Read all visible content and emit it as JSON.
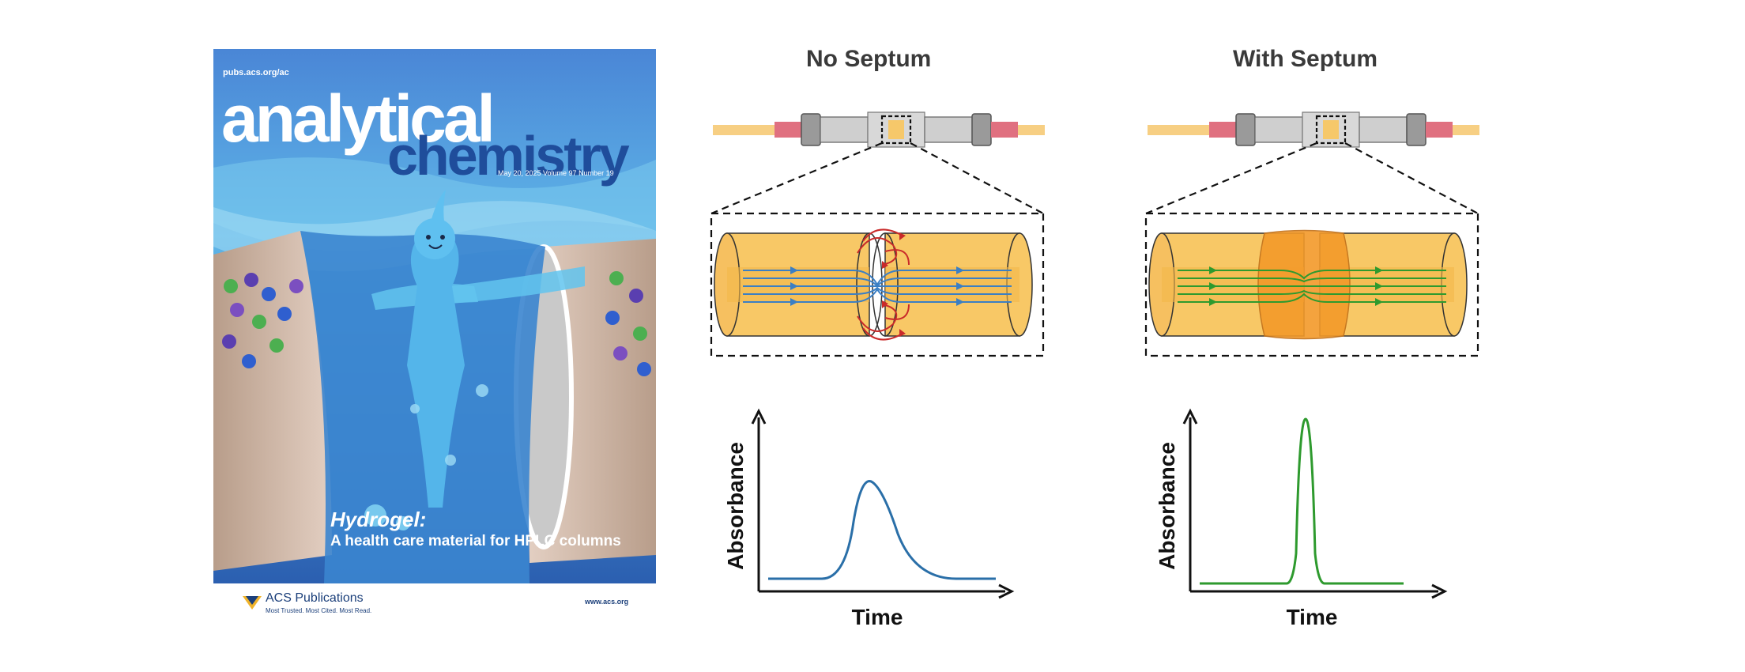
{
  "cover": {
    "url": "pubs.acs.org/ac",
    "title_line1": "analytical",
    "title_line2": "chemistry",
    "issue": "May 20, 2025  Volume 97  Number 19",
    "highlight_title": "Hydrogel:",
    "highlight_subtitle": "A health care material for HPLC columns",
    "publisher": "ACS Publications",
    "publisher_tagline": "Most Trusted. Most Cited. Most Read.",
    "website": "www.acs.org"
  },
  "panels": [
    {
      "title": "No Septum",
      "xlabel": "Time",
      "ylabel": "Absorbance",
      "trace_color": "#2a6fa8",
      "flow_color": "#3b7fc4"
    },
    {
      "title": "With Septum",
      "xlabel": "Time",
      "ylabel": "Absorbance",
      "trace_color": "#2e9a2e",
      "flow_color": "#2e9a2e"
    }
  ],
  "colors": {
    "capillary": "#f7cf83",
    "seal": "#e07080",
    "column_fill": "#f8c866",
    "septum": "#f39a2a",
    "vortex": "#c92a2a"
  }
}
